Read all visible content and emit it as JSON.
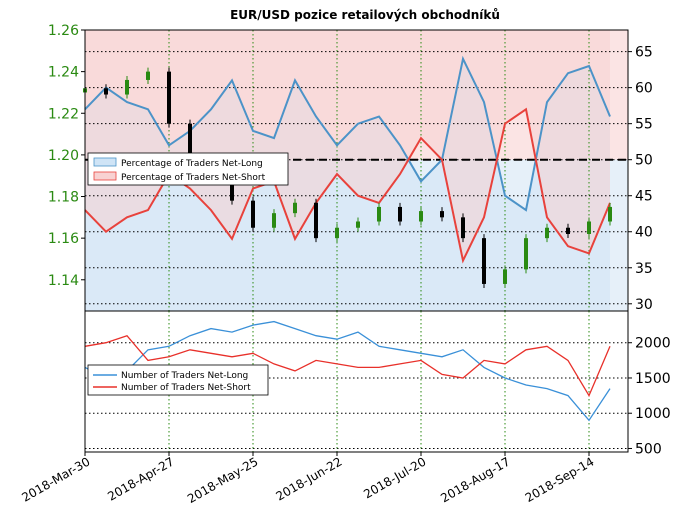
{
  "chart_data": [
    {
      "type": "line",
      "panel": "top",
      "title": "EUR/USD pozice retailových obchodníků",
      "x_ticks": [
        "2018-Mar-30",
        "2018-Apr-27",
        "2018-May-25",
        "2018-Jun-22",
        "2018-Jul-20",
        "2018-Aug-17",
        "2018-Sep-14"
      ],
      "left_axis": {
        "ticks": [
          "1.14",
          "1.16",
          "1.18",
          "1.20",
          "1.22",
          "1.24",
          "1.26"
        ],
        "ylim": [
          1.125,
          1.26
        ],
        "color": "#2a8a12"
      },
      "right_axis": {
        "ticks": [
          "30",
          "35",
          "40",
          "45",
          "50",
          "55",
          "60",
          "65"
        ],
        "ylim": [
          29,
          68
        ]
      },
      "reference_line": 50,
      "legend": {
        "position": "upper-left",
        "entries": [
          "Percentage of Traders Net-Long",
          "Percentage of Traders Net-Short"
        ]
      },
      "series": [
        {
          "name": "Percentage of Traders Net-Long",
          "color": "#4c93c8",
          "fill": "#cfe4f6",
          "dates": [
            "2018-03-30",
            "2018-04-06",
            "2018-04-13",
            "2018-04-20",
            "2018-04-27",
            "2018-05-04",
            "2018-05-11",
            "2018-05-18",
            "2018-05-25",
            "2018-06-01",
            "2018-06-08",
            "2018-06-15",
            "2018-06-22",
            "2018-06-29",
            "2018-07-06",
            "2018-07-13",
            "2018-07-20",
            "2018-07-27",
            "2018-08-03",
            "2018-08-10",
            "2018-08-17",
            "2018-08-24",
            "2018-08-31",
            "2018-09-07",
            "2018-09-14",
            "2018-09-21"
          ],
          "values": [
            57,
            60,
            58,
            57,
            52,
            54,
            57,
            61,
            54,
            53,
            61,
            56,
            52,
            55,
            56,
            52,
            47,
            50,
            64,
            58,
            45,
            43,
            58,
            62,
            63,
            56
          ]
        },
        {
          "name": "Percentage of Traders Net-Short",
          "color": "#e8423c",
          "fill": "#f8d2d2",
          "dates": [
            "2018-03-30",
            "2018-04-06",
            "2018-04-13",
            "2018-04-20",
            "2018-04-27",
            "2018-05-04",
            "2018-05-11",
            "2018-05-18",
            "2018-05-25",
            "2018-06-01",
            "2018-06-08",
            "2018-06-15",
            "2018-06-22",
            "2018-06-29",
            "2018-07-06",
            "2018-07-13",
            "2018-07-20",
            "2018-07-27",
            "2018-08-03",
            "2018-08-10",
            "2018-08-17",
            "2018-08-24",
            "2018-08-31",
            "2018-09-07",
            "2018-09-14",
            "2018-09-21"
          ],
          "values": [
            43,
            40,
            42,
            43,
            48,
            46,
            43,
            39,
            46,
            47,
            39,
            44,
            48,
            45,
            44,
            48,
            53,
            50,
            36,
            42,
            55,
            57,
            42,
            38,
            37,
            44
          ]
        }
      ],
      "candles": {
        "name": "EUR/USD",
        "up_color": "#2a8a12",
        "down_color": "#000000",
        "dates": [
          "2018-03-30",
          "2018-04-06",
          "2018-04-13",
          "2018-04-20",
          "2018-04-27",
          "2018-05-04",
          "2018-05-11",
          "2018-05-18",
          "2018-05-25",
          "2018-06-01",
          "2018-06-08",
          "2018-06-15",
          "2018-06-22",
          "2018-06-29",
          "2018-07-06",
          "2018-07-13",
          "2018-07-20",
          "2018-07-27",
          "2018-08-03",
          "2018-08-10",
          "2018-08-17",
          "2018-08-24",
          "2018-08-31",
          "2018-09-07",
          "2018-09-14",
          "2018-09-21"
        ],
        "close": [
          1.232,
          1.229,
          1.236,
          1.24,
          1.215,
          1.198,
          1.192,
          1.178,
          1.165,
          1.172,
          1.177,
          1.16,
          1.165,
          1.168,
          1.175,
          1.168,
          1.173,
          1.17,
          1.16,
          1.138,
          1.145,
          1.16,
          1.165,
          1.162,
          1.168,
          1.175
        ]
      }
    },
    {
      "type": "line",
      "panel": "bottom",
      "right_axis": {
        "ticks": [
          "500",
          "1000",
          "1500",
          "2000"
        ],
        "ylim": [
          450,
          2450
        ]
      },
      "legend": {
        "position": "center-left",
        "entries": [
          "Number of Traders Net-Long",
          "Number of Traders Net-Short"
        ]
      },
      "series": [
        {
          "name": "Number of Traders Net-Long",
          "color": "#3a90d8",
          "dates": [
            "2018-03-30",
            "2018-04-06",
            "2018-04-13",
            "2018-04-20",
            "2018-04-27",
            "2018-05-04",
            "2018-05-11",
            "2018-05-18",
            "2018-05-25",
            "2018-06-01",
            "2018-06-08",
            "2018-06-15",
            "2018-06-22",
            "2018-06-29",
            "2018-07-06",
            "2018-07-13",
            "2018-07-20",
            "2018-07-27",
            "2018-08-03",
            "2018-08-10",
            "2018-08-17",
            "2018-08-24",
            "2018-08-31",
            "2018-09-07",
            "2018-09-14",
            "2018-09-21"
          ],
          "values": [
            1650,
            1500,
            1600,
            1900,
            1950,
            2100,
            2200,
            2150,
            2250,
            2300,
            2200,
            2100,
            2050,
            2150,
            1950,
            1900,
            1850,
            1800,
            1900,
            1650,
            1500,
            1400,
            1350,
            1250,
            900,
            1350
          ]
        },
        {
          "name": "Number of Traders Net-Short",
          "color": "#e8302a",
          "dates": [
            "2018-03-30",
            "2018-04-06",
            "2018-04-13",
            "2018-04-20",
            "2018-04-27",
            "2018-05-04",
            "2018-05-11",
            "2018-05-18",
            "2018-05-25",
            "2018-06-01",
            "2018-06-08",
            "2018-06-15",
            "2018-06-22",
            "2018-06-29",
            "2018-07-06",
            "2018-07-13",
            "2018-07-20",
            "2018-07-27",
            "2018-08-03",
            "2018-08-10",
            "2018-08-17",
            "2018-08-24",
            "2018-08-31",
            "2018-09-07",
            "2018-09-14",
            "2018-09-21"
          ],
          "values": [
            1950,
            2000,
            2100,
            1750,
            1800,
            1900,
            1850,
            1800,
            1850,
            1700,
            1600,
            1750,
            1700,
            1650,
            1650,
            1700,
            1750,
            1550,
            1500,
            1750,
            1700,
            1900,
            1950,
            1750,
            1250,
            1950
          ]
        }
      ]
    }
  ]
}
